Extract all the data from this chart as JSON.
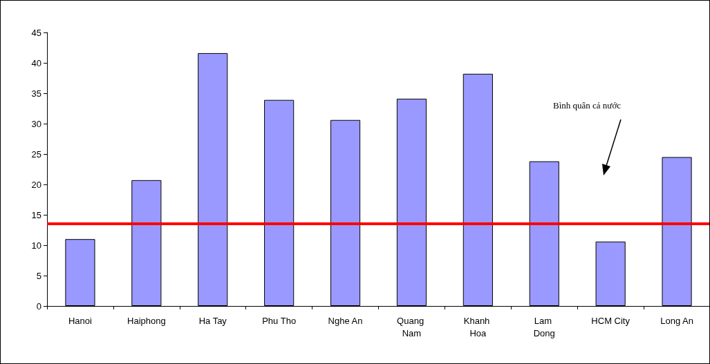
{
  "chart_data": {
    "type": "bar",
    "categories": [
      "Hanoi",
      "Haiphong",
      "Ha Tay",
      "Phu Tho",
      "Nghe An",
      "Quang Nam",
      "Khanh Hoa",
      "Lam Dong",
      "HCM City",
      "Long An"
    ],
    "values": [
      11.0,
      20.7,
      41.6,
      33.9,
      30.6,
      34.1,
      38.2,
      23.8,
      10.6,
      24.5
    ],
    "color": "#9999ff",
    "ylim": [
      0,
      45
    ],
    "yticks": [
      0,
      5,
      10,
      15,
      20,
      25,
      30,
      35,
      40,
      45
    ],
    "ref_lines": [
      {
        "axis": "y",
        "value": 13.5,
        "color": "#ff0000"
      }
    ],
    "annotations": [
      "Bình quân cả nước"
    ]
  }
}
